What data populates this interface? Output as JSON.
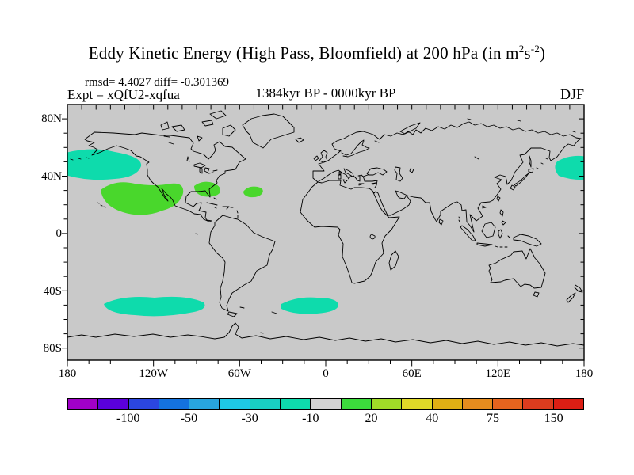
{
  "figure": {
    "title": {
      "main": "Eddy Kinetic Energy (High Pass, Bloomfield) at 200 hPa (in m",
      "exp1": "2",
      "unit_s": "s",
      "exp2": "-2",
      "close": ")"
    },
    "stats_line": "rmsd= 4.4027 diff= -0.301369",
    "experiment_label": "Expt = xQfU2-xqfua",
    "period_label": "1384kyr BP - 0000kyr BP",
    "season_label": "DJF"
  },
  "map": {
    "background_color": "#c9c9c9",
    "coastline_color": "#000000",
    "lat_labels": [
      "80N",
      "40N",
      "0",
      "40S",
      "80S"
    ],
    "lon_labels": [
      "180",
      "120W",
      "60W",
      "0",
      "60E",
      "120E",
      "180"
    ],
    "anomaly_regions": [
      {
        "name": "northeast-pacific",
        "sign": "negative",
        "color": "#0edbac"
      },
      {
        "name": "east-subtropical-pacific",
        "sign": "positive",
        "color": "#49d72c"
      },
      {
        "name": "us-southeast-coast",
        "sign": "positive",
        "color": "#49d72c"
      },
      {
        "name": "central-north-atlantic",
        "sign": "positive",
        "color": "#49d72c"
      },
      {
        "name": "northwest-pacific",
        "sign": "negative",
        "color": "#0edbac"
      },
      {
        "name": "south-pacific",
        "sign": "negative",
        "color": "#0edbac"
      },
      {
        "name": "south-atlantic",
        "sign": "negative",
        "color": "#0edbac"
      }
    ]
  },
  "colorbar": {
    "labels": [
      "-100",
      "-50",
      "-30",
      "-10",
      "20",
      "40",
      "75",
      "150"
    ],
    "colors": [
      "#a000c8",
      "#5a00dc",
      "#2b46e0",
      "#1472de",
      "#28a5df",
      "#1ec8e6",
      "#19cfc4",
      "#0edbac",
      "#d3d3d3",
      "#3cdc3c",
      "#a0dc28",
      "#dfd928",
      "#e0af14",
      "#e68c1e",
      "#e6641e",
      "#dc3c1e",
      "#dc1e14"
    ]
  },
  "chart_data": {
    "type": "heatmap",
    "title": "Eddy Kinetic Energy (High Pass, Bloomfield) at 200 hPa (in m2 s-2)",
    "subtitle": "1384kyr BP - 0000kyr BP",
    "experiment": "xQfU2-xqfua",
    "season": "DJF",
    "rmsd": 4.4027,
    "diff": -0.301369,
    "projection": "equirectangular world map, 180W-180E, ~90N-90S",
    "x_tick_labels": [
      "180",
      "120W",
      "60W",
      "0",
      "60E",
      "120E",
      "180"
    ],
    "y_tick_labels": [
      "80N",
      "40N",
      "0",
      "40S",
      "80S"
    ],
    "colorbar_tick_values": [
      -100,
      -50,
      -30,
      -10,
      20,
      40,
      75,
      150
    ],
    "background_value_range": "-10 to 10 (gray, no significant difference)",
    "anomalies": [
      {
        "region": "Northeast Pacific / Gulf of Alaska",
        "lon_range": "180W-126W",
        "lat_range": "37N-58N",
        "value_range": "-20 to -10"
      },
      {
        "region": "Eastern subtropical North Pacific",
        "lon_range": "157W-97W",
        "lat_range": "12N-36N",
        "value_range": "10 to 20"
      },
      {
        "region": "US southeast coast / Gulf Stream",
        "lon_range": "92W-72W",
        "lat_range": "26N-36N",
        "value_range": "10 to 20"
      },
      {
        "region": "Central subtropical North Atlantic",
        "lon_range": "58W-43W",
        "lat_range": "25N-33N",
        "value_range": "10 to 20"
      },
      {
        "region": "Northwest Pacific east of Japan",
        "lon_range": "160E-180E",
        "lat_range": "37N-54N",
        "value_range": "-20 to -10"
      },
      {
        "region": "South Pacific storm track",
        "lon_range": "155W-82W",
        "lat_range": "57S-42S",
        "value_range": "-20 to -10"
      },
      {
        "region": "South Atlantic storm track",
        "lon_range": "32W-10E",
        "lat_range": "56S-42S",
        "value_range": "-20 to -10"
      }
    ]
  }
}
